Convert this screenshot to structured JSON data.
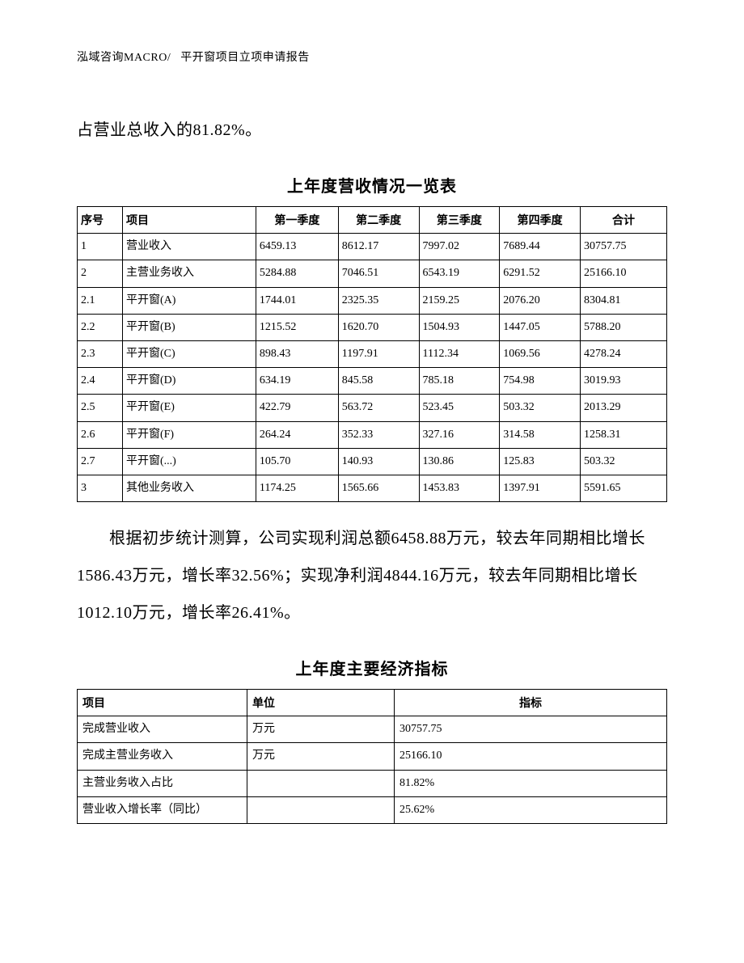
{
  "header": {
    "left": "泓域咨询MACRO/",
    "right": "平开窗项目立项申请报告"
  },
  "para1": "占营业总收入的81.82%。",
  "table1": {
    "title": "上年度营收情况一览表",
    "columns": [
      "序号",
      "项目",
      "第一季度",
      "第二季度",
      "第三季度",
      "第四季度",
      "合计"
    ],
    "rows": [
      [
        "1",
        "营业收入",
        "6459.13",
        "8612.17",
        "7997.02",
        "7689.44",
        "30757.75"
      ],
      [
        "2",
        "主营业务收入",
        "5284.88",
        "7046.51",
        "6543.19",
        "6291.52",
        "25166.10"
      ],
      [
        "2.1",
        "平开窗(A)",
        "1744.01",
        "2325.35",
        "2159.25",
        "2076.20",
        "8304.81"
      ],
      [
        "2.2",
        "平开窗(B)",
        "1215.52",
        "1620.70",
        "1504.93",
        "1447.05",
        "5788.20"
      ],
      [
        "2.3",
        "平开窗(C)",
        "898.43",
        "1197.91",
        "1112.34",
        "1069.56",
        "4278.24"
      ],
      [
        "2.4",
        "平开窗(D)",
        "634.19",
        "845.58",
        "785.18",
        "754.98",
        "3019.93"
      ],
      [
        "2.5",
        "平开窗(E)",
        "422.79",
        "563.72",
        "523.45",
        "503.32",
        "2013.29"
      ],
      [
        "2.6",
        "平开窗(F)",
        "264.24",
        "352.33",
        "327.16",
        "314.58",
        "1258.31"
      ],
      [
        "2.7",
        "平开窗(...)",
        "105.70",
        "140.93",
        "130.86",
        "125.83",
        "503.32"
      ],
      [
        "3",
        "其他业务收入",
        "1174.25",
        "1565.66",
        "1453.83",
        "1397.91",
        "5591.65"
      ]
    ]
  },
  "para2": "根据初步统计测算，公司实现利润总额6458.88万元，较去年同期相比增长1586.43万元，增长率32.56%；实现净利润4844.16万元，较去年同期相比增长1012.10万元，增长率26.41%。",
  "table2": {
    "title": "上年度主要经济指标",
    "columns": [
      "项目",
      "单位",
      "指标"
    ],
    "rows": [
      [
        "完成营业收入",
        "万元",
        "30757.75"
      ],
      [
        "完成主营业务收入",
        "万元",
        "25166.10"
      ],
      [
        "主营业务收入占比",
        "",
        "81.82%"
      ],
      [
        "营业收入增长率（同比）",
        "",
        "25.62%"
      ]
    ]
  }
}
